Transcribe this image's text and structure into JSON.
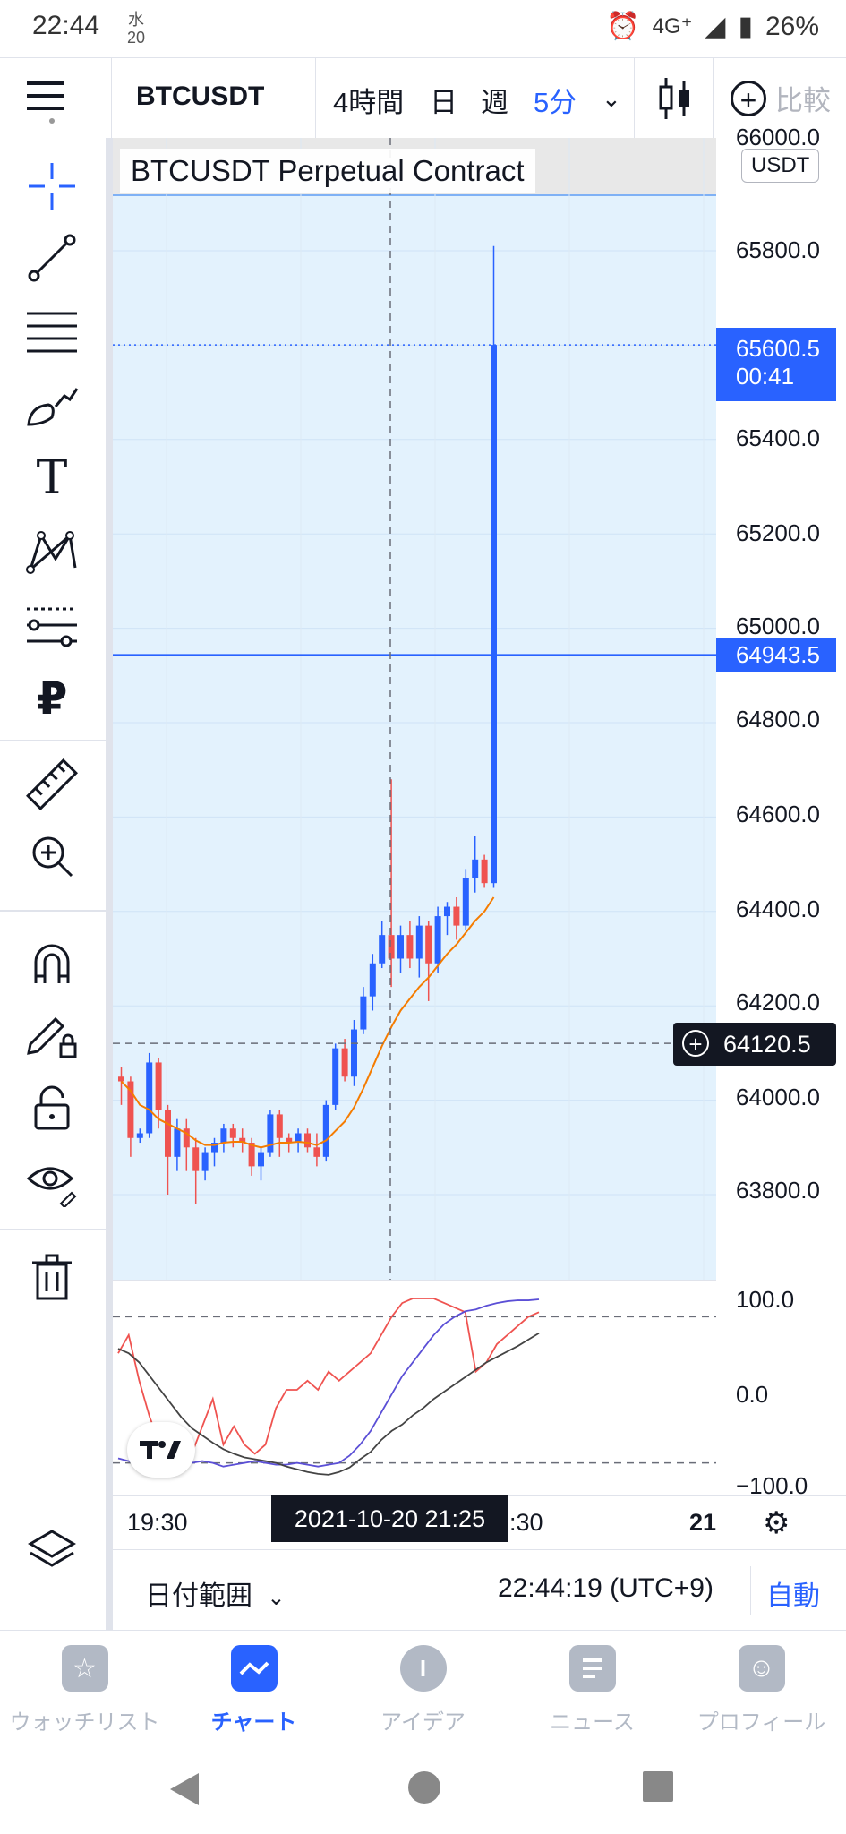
{
  "status": {
    "time": "22:44",
    "cal_top": "水",
    "cal_bottom": "20",
    "network": "4G⁺",
    "battery": "26%"
  },
  "toolbar": {
    "symbol": "BTCUSDT",
    "intervals": [
      "4時間",
      "日",
      "週",
      "5分"
    ],
    "active_interval": "5分",
    "compare_label": "比較"
  },
  "legend": {
    "title": "BTCUSDT Perpetual Contract",
    "currency": "USDT"
  },
  "price_axis": {
    "labels": [
      "65800.0",
      "65400.0",
      "65200.0",
      "65000.0",
      "64800.0",
      "64600.0",
      "64400.0",
      "64200.0",
      "64000.0",
      "63800.0"
    ],
    "top_partial": "66000.0",
    "last_price": "65600.5",
    "countdown": "00:41",
    "line_price": "64943.5",
    "crosshair_price": "64120.5"
  },
  "osc_axis": {
    "labels": [
      "100.0",
      "0.0",
      "−100.0"
    ]
  },
  "time_axis": {
    "labels": [
      "19:30",
      "2:30",
      "21"
    ],
    "crosshair_time": "2021-10-20   21:25"
  },
  "controls": {
    "date_range": "日付範囲",
    "clock": "22:44:19 (UTC+9)",
    "auto": "自動"
  },
  "nav": [
    {
      "label": "ウォッチリスト",
      "icon": "star-icon",
      "active": false
    },
    {
      "label": "チャート",
      "icon": "chart-icon",
      "active": true
    },
    {
      "label": "アイデア",
      "icon": "bulb-icon",
      "active": false
    },
    {
      "label": "ニュース",
      "icon": "news-icon",
      "active": false
    },
    {
      "label": "プロフィール",
      "icon": "smile-icon",
      "active": false
    }
  ],
  "colors": {
    "up": "#2962ff",
    "down": "#ef5350",
    "ma": "#f57c00",
    "accent": "#2962ff",
    "bg": "#e3f2fd"
  },
  "chart_data": {
    "type": "candlestick",
    "symbol": "BTCUSDT Perpetual Contract",
    "ylim": [
      63650,
      66050
    ],
    "candles": [
      [
        64050,
        64070,
        63990,
        64040
      ],
      [
        64040,
        64050,
        63880,
        63920
      ],
      [
        63920,
        63940,
        63910,
        63930
      ],
      [
        63930,
        64100,
        63920,
        64080
      ],
      [
        64080,
        64090,
        63940,
        63980
      ],
      [
        63980,
        63990,
        63800,
        63880
      ],
      [
        63880,
        63960,
        63850,
        63940
      ],
      [
        63940,
        63960,
        63850,
        63900
      ],
      [
        63900,
        63920,
        63780,
        63850
      ],
      [
        63850,
        63900,
        63830,
        63890
      ],
      [
        63890,
        63920,
        63860,
        63910
      ],
      [
        63910,
        63950,
        63890,
        63940
      ],
      [
        63940,
        63950,
        63900,
        63920
      ],
      [
        63920,
        63940,
        63890,
        63910
      ],
      [
        63910,
        63920,
        63840,
        63860
      ],
      [
        63860,
        63900,
        63830,
        63890
      ],
      [
        63890,
        63980,
        63880,
        63970
      ],
      [
        63970,
        63980,
        63880,
        63920
      ],
      [
        63920,
        63930,
        63890,
        63910
      ],
      [
        63910,
        63940,
        63890,
        63930
      ],
      [
        63930,
        63940,
        63890,
        63900
      ],
      [
        63900,
        63930,
        63860,
        63880
      ],
      [
        63880,
        64000,
        63870,
        63990
      ],
      [
        63990,
        64120,
        63980,
        64110
      ],
      [
        64110,
        64130,
        64040,
        64050
      ],
      [
        64050,
        64170,
        64030,
        64150
      ],
      [
        64150,
        64240,
        64140,
        64220
      ],
      [
        64220,
        64310,
        64190,
        64290
      ],
      [
        64290,
        64380,
        64280,
        64350
      ],
      [
        64350,
        64680,
        64240,
        64300
      ],
      [
        64300,
        64370,
        64270,
        64350
      ],
      [
        64350,
        64380,
        64280,
        64300
      ],
      [
        64300,
        64390,
        64260,
        64370
      ],
      [
        64370,
        64380,
        64210,
        64290
      ],
      [
        64290,
        64410,
        64270,
        64390
      ],
      [
        64390,
        64420,
        64350,
        64410
      ],
      [
        64410,
        64430,
        64340,
        64370
      ],
      [
        64370,
        64490,
        64360,
        64470
      ],
      [
        64470,
        64560,
        64440,
        64510
      ],
      [
        64510,
        64520,
        64450,
        64460
      ],
      [
        64460,
        65810,
        64450,
        65600.5
      ]
    ],
    "ma": [
      64040,
      64020,
      63990,
      63980,
      63960,
      63950,
      63940,
      63930,
      63915,
      63905,
      63905,
      63910,
      63912,
      63912,
      63905,
      63900,
      63905,
      63910,
      63910,
      63912,
      63910,
      63905,
      63915,
      63935,
      63955,
      63985,
      64025,
      64070,
      64115,
      64155,
      64190,
      64215,
      64240,
      64260,
      64285,
      64310,
      64330,
      64355,
      64380,
      64400,
      64430
    ]
  }
}
